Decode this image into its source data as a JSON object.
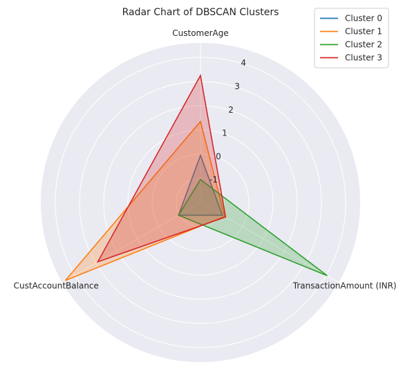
{
  "chart_data": {
    "type": "radar",
    "title": "Radar Chart of DBSCAN Clusters",
    "axes": [
      "CustomerAge",
      "TransactionAmount (INR)",
      "CustAccountBalance"
    ],
    "r_range": [
      -2,
      4.6
    ],
    "r_ticks": [
      -1,
      0,
      1,
      2,
      3,
      4
    ],
    "r_tick_labels": [
      "-1",
      "0",
      "1",
      "2",
      "3",
      "4"
    ],
    "grid": true,
    "legend_position": "top-right",
    "series": [
      {
        "name": "Cluster 0",
        "color": "#1f77b4",
        "values": [
          -0.05,
          -0.95,
          -0.95
        ]
      },
      {
        "name": "Cluster 1",
        "color": "#ff7f0e",
        "values": [
          1.35,
          -0.85,
          4.45
        ]
      },
      {
        "name": "Cluster 2",
        "color": "#2ca02c",
        "values": [
          -1.05,
          4.05,
          -0.95
        ]
      },
      {
        "name": "Cluster 3",
        "color": "#d62728",
        "values": [
          3.25,
          -0.8,
          2.9
        ]
      }
    ]
  }
}
